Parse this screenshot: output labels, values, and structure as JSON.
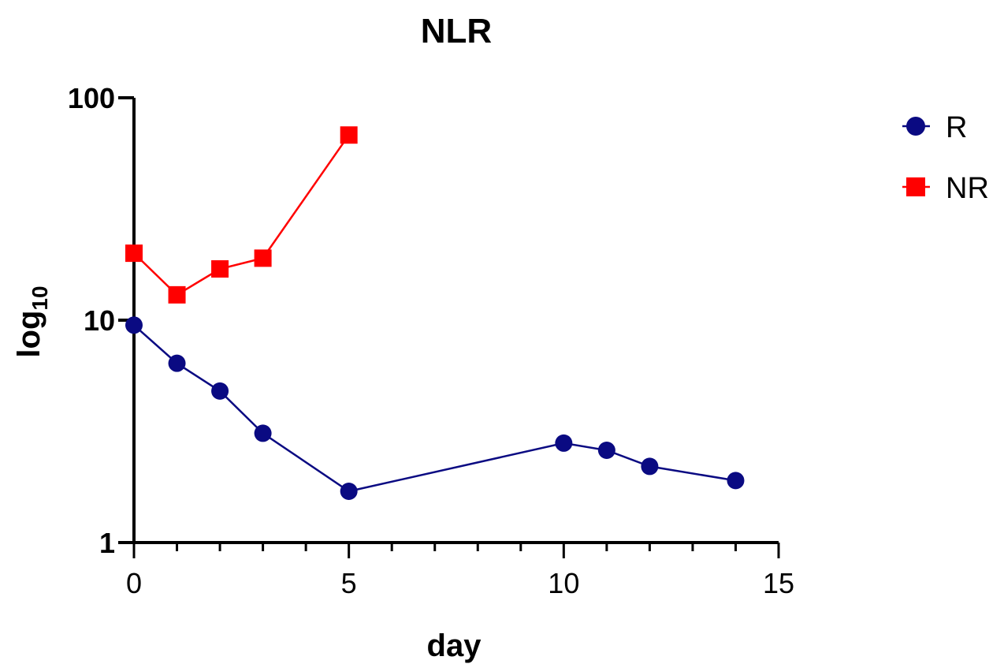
{
  "chart_data": {
    "type": "line",
    "title": "NLR",
    "xlabel": "day",
    "ylabel_base": "log",
    "ylabel_sub": "10",
    "yscale": "log",
    "xlim": [
      0,
      15
    ],
    "ylim": [
      1,
      100
    ],
    "x_ticks": [
      0,
      5,
      10,
      15
    ],
    "x_minor_ticks": [
      1,
      2,
      3,
      4,
      6,
      7,
      8,
      9,
      11,
      12,
      13,
      14
    ],
    "y_ticks": [
      1,
      10,
      100
    ],
    "grid": false,
    "legend_position": "top-right",
    "series": [
      {
        "name": "R",
        "color": "#0a0a82",
        "marker": "circle",
        "x": [
          0,
          1,
          2,
          3,
          5,
          10,
          11,
          12,
          14
        ],
        "y": [
          9.5,
          6.4,
          4.8,
          3.1,
          1.7,
          2.8,
          2.6,
          2.2,
          1.9
        ]
      },
      {
        "name": "NR",
        "color": "#ff0000",
        "marker": "square",
        "x": [
          0,
          1,
          2,
          3,
          5
        ],
        "y": [
          20,
          13,
          17,
          19,
          68
        ]
      }
    ]
  }
}
